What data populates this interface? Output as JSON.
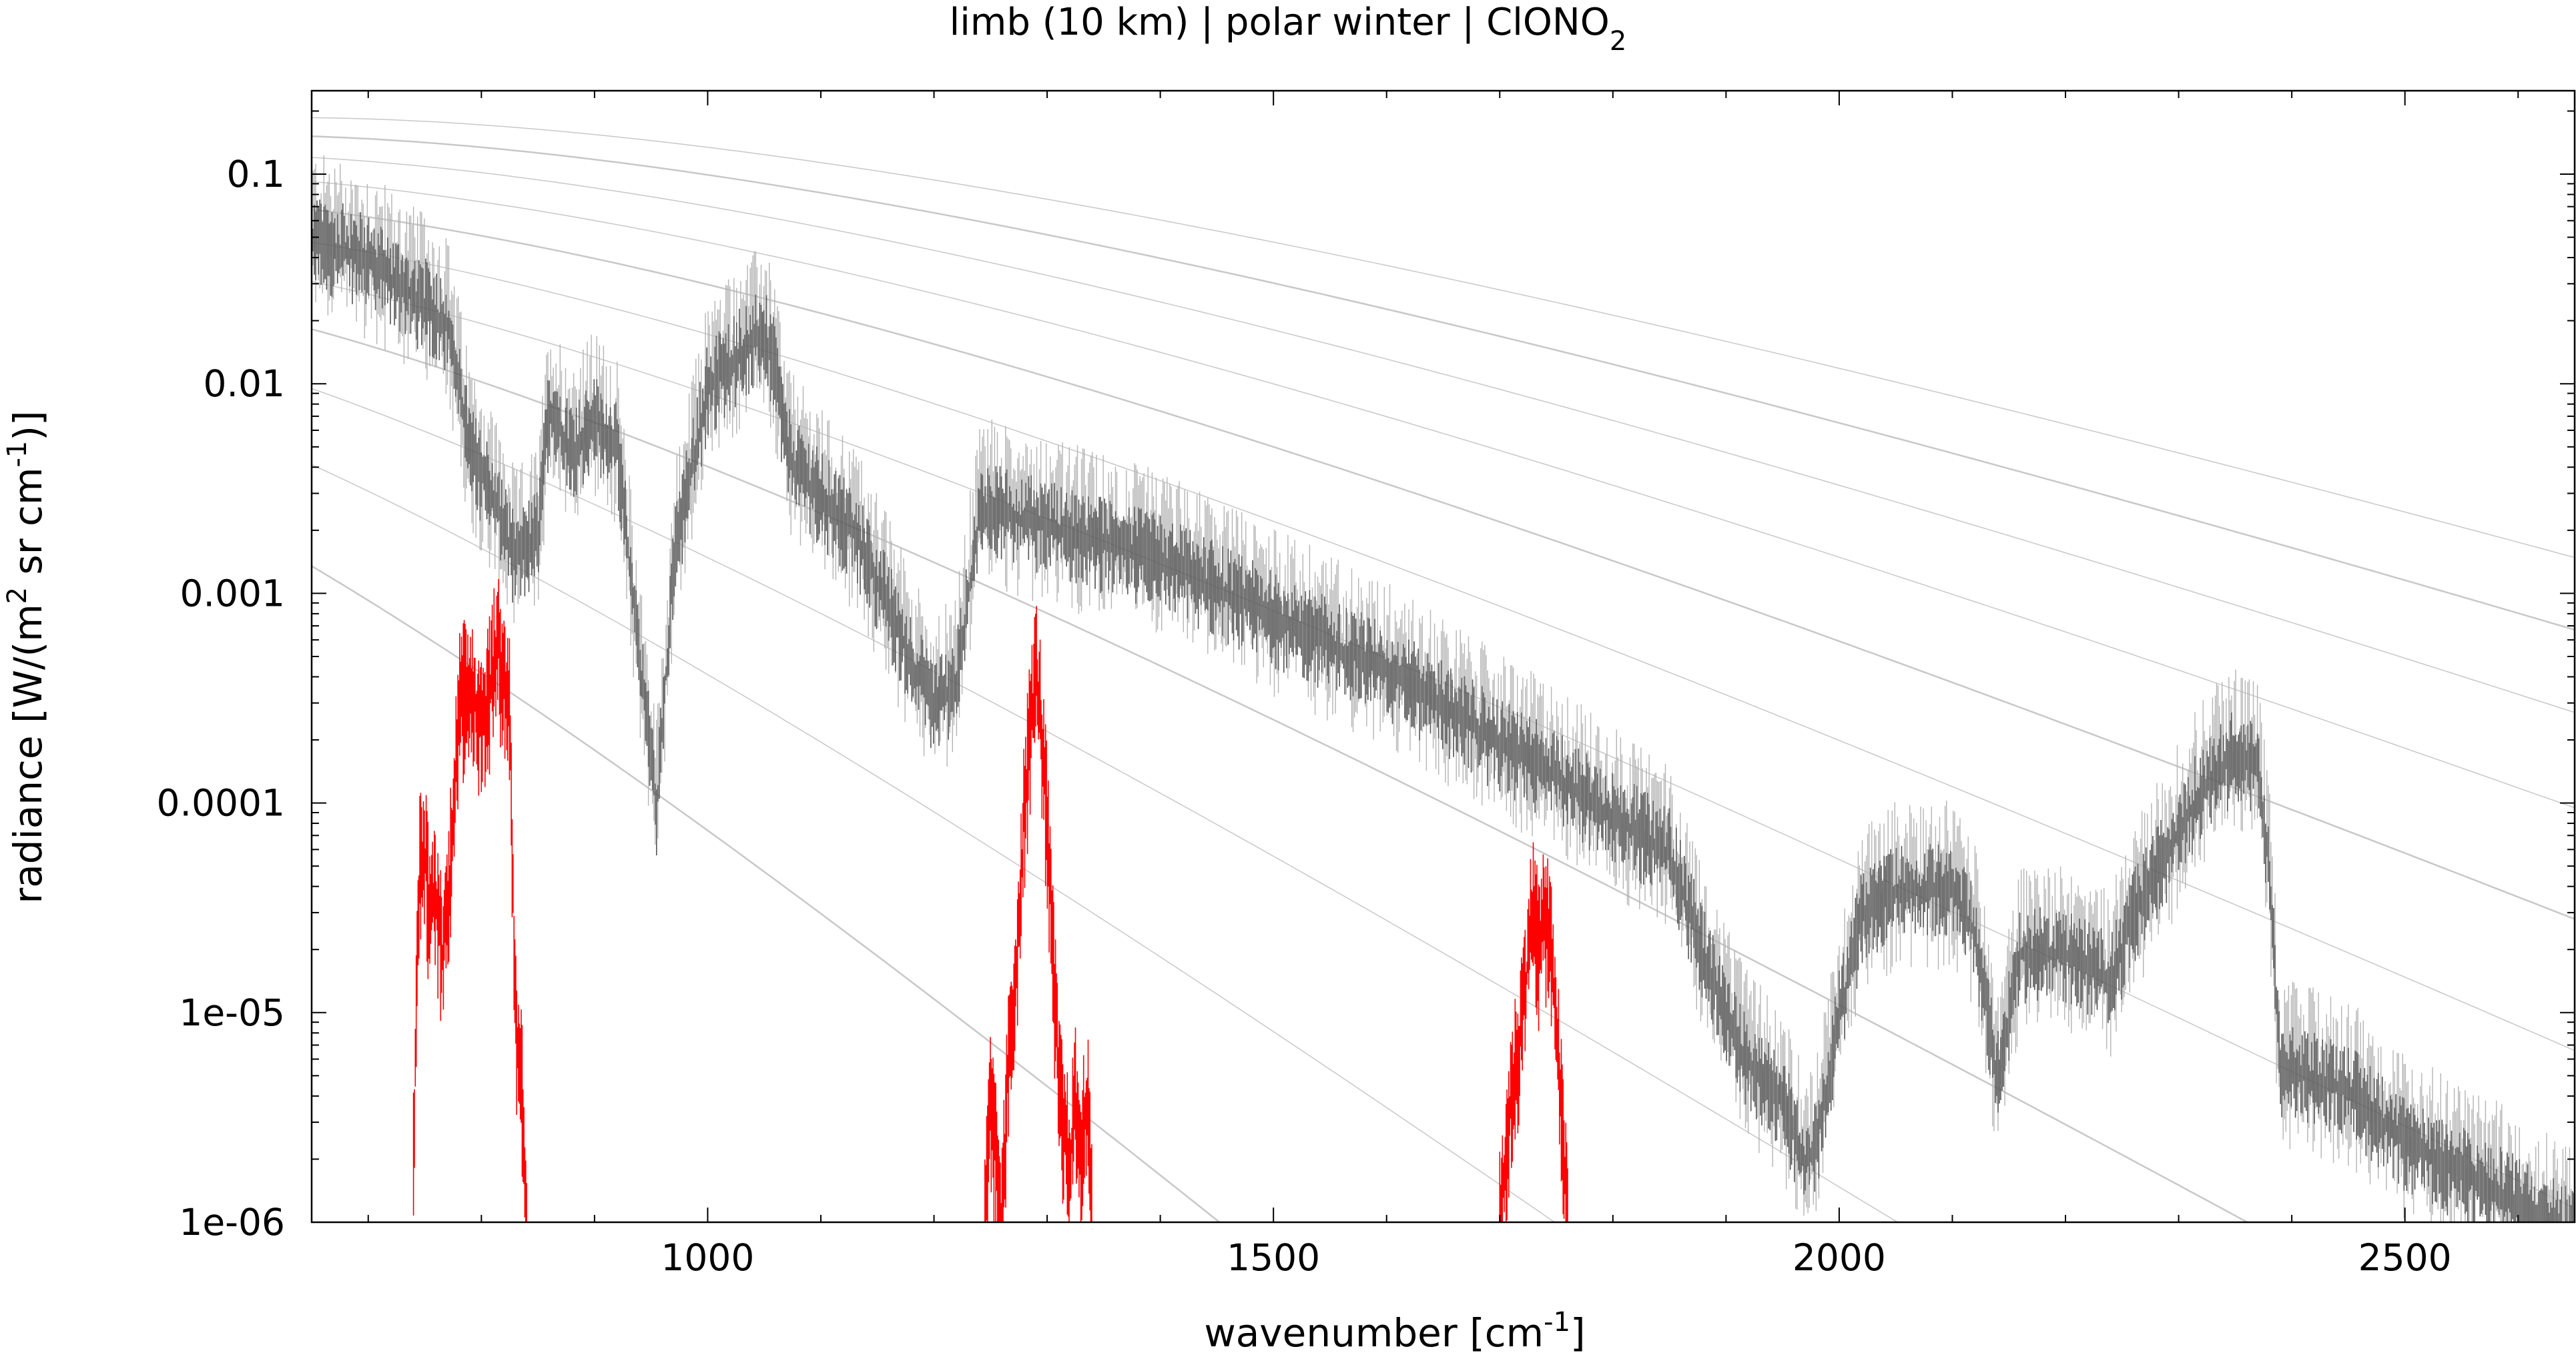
{
  "chart_data": {
    "type": "line",
    "title_main": "limb (10 km) | polar winter | ClONO",
    "title_sub": "2",
    "xlabel_main": "wavenumber [cm",
    "xlabel_sup": "-1",
    "xlabel_end": "]",
    "ylabel_p1": "radiance [W/(m",
    "ylabel_sup1": "2",
    "ylabel_p2": " sr cm",
    "ylabel_sup2": "-1",
    "ylabel_p3": ")]",
    "xlim": [
      650,
      2650
    ],
    "ylim": [
      1e-06,
      0.25
    ],
    "yscale": "log",
    "grid": false,
    "x_ticks": [
      1000,
      1500,
      2000,
      2500
    ],
    "x_tick_labels": [
      "1000",
      "1500",
      "2000",
      "2500"
    ],
    "y_ticks": [
      0.1,
      0.01,
      0.001,
      0.0001,
      1e-05,
      1e-06
    ],
    "y_tick_labels": [
      "0.1",
      "0.01",
      "0.001",
      "0.0001",
      "1e-05",
      "1e-06"
    ],
    "colors": {
      "total": "#555555",
      "total_alt": "#b4b4b4",
      "planck": "#c8c8c8",
      "clono2": "#ff0000"
    },
    "planck_reference_curves": {
      "temperature_K": [
        320,
        300,
        280,
        260,
        240,
        220,
        200,
        180,
        160,
        140,
        120
      ]
    },
    "series": [
      {
        "key": "total",
        "x": [
          650,
          680,
          700,
          730,
          750,
          770,
          790,
          810,
          830,
          850,
          860,
          880,
          900,
          920,
          940,
          955,
          970,
          1000,
          1030,
          1050,
          1060,
          1070,
          1080,
          1100,
          1130,
          1150,
          1180,
          1200,
          1220,
          1240,
          1250,
          1260,
          1300,
          1350,
          1400,
          1450,
          1500,
          1550,
          1600,
          1650,
          1700,
          1750,
          1800,
          1850,
          1880,
          1900,
          1920,
          1950,
          1970,
          1980,
          2000,
          2020,
          2050,
          2080,
          2100,
          2120,
          2140,
          2160,
          2200,
          2240,
          2260,
          2290,
          2320,
          2350,
          2370,
          2380,
          2390,
          2400,
          2450,
          2500,
          2550,
          2600,
          2650
        ],
        "y": [
          0.05,
          0.045,
          0.04,
          0.03,
          0.025,
          0.02,
          0.005,
          0.003,
          0.0015,
          0.002,
          0.008,
          0.005,
          0.007,
          0.005,
          0.0005,
          0.0001,
          0.0015,
          0.01,
          0.015,
          0.018,
          0.012,
          0.005,
          0.004,
          0.003,
          0.002,
          0.0012,
          0.0005,
          0.0003,
          0.0004,
          0.0025,
          0.0028,
          0.0025,
          0.0022,
          0.0018,
          0.0015,
          0.0011,
          0.0008,
          0.0006,
          0.00045,
          0.0003,
          0.0002,
          0.00014,
          9e-05,
          6e-05,
          2e-05,
          1e-05,
          6e-06,
          4e-06,
          2e-06,
          2.5e-06,
          1e-05,
          3e-05,
          4e-05,
          4e-05,
          4e-05,
          2.5e-05,
          5e-06,
          2e-05,
          2e-05,
          1.5e-05,
          3e-05,
          6e-05,
          0.00012,
          0.00018,
          0.00015,
          5e-05,
          5e-06,
          5.5e-06,
          4.5e-06,
          2.5e-06,
          1.8e-06,
          1.3e-06,
          9e-07
        ]
      },
      {
        "key": "clono2",
        "segments": [
          {
            "x": [
              740,
              745,
              750,
              755,
              760,
              765,
              770,
              775,
              780,
              790,
              800,
              810,
              815,
              820,
              825,
              830,
              835,
              840
            ],
            "y": [
              2e-06,
              5e-05,
              6e-05,
              3e-05,
              4e-05,
              2e-05,
              3e-05,
              0.0001,
              0.0003,
              0.0004,
              0.00025,
              0.00045,
              0.0006,
              0.0004,
              0.0003,
              1e-05,
              6e-06,
              1e-06
            ]
          },
          {
            "x": [
              1245,
              1250,
              1255,
              1260,
              1265,
              1270,
              1275,
              1280,
              1285,
              1290,
              1295,
              1300,
              1305,
              1310,
              1315,
              1320,
              1325,
              1330,
              1335,
              1340
            ],
            "y": [
              1e-06,
              4e-06,
              2e-06,
              1e-06,
              5e-06,
              1e-05,
              3e-05,
              0.0001,
              0.00024,
              0.00045,
              0.00025,
              8e-05,
              2e-05,
              5e-06,
              3e-06,
              2e-06,
              4e-06,
              2e-06,
              5e-06,
              1e-06
            ]
          },
          {
            "x": [
              1700,
              1710,
              1720,
              1725,
              1730,
              1735,
              1740,
              1745,
              1750,
              1755,
              1760
            ],
            "y": [
              1e-06,
              4e-06,
              1e-05,
              2e-05,
              3.5e-05,
              2e-05,
              3.2e-05,
              2e-05,
              1e-05,
              3e-06,
              1e-06
            ]
          }
        ]
      }
    ]
  }
}
